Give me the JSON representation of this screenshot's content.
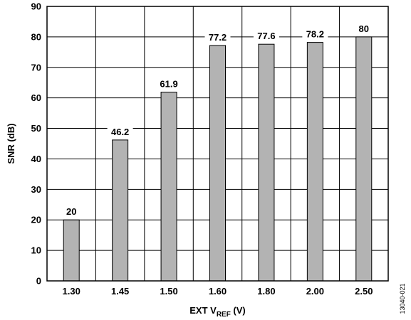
{
  "chart_data": {
    "type": "bar",
    "categories": [
      "1.30",
      "1.45",
      "1.50",
      "1.60",
      "1.80",
      "2.00",
      "2.50"
    ],
    "values": [
      20,
      46.2,
      61.9,
      77.2,
      77.6,
      78.2,
      80
    ],
    "data_labels": [
      "20",
      "46.2",
      "61.9",
      "77.2",
      "77.6",
      "78.2",
      "80"
    ],
    "xlabel": "EXT V",
    "xlabel_subscript": "REF",
    "xlabel_suffix": " (V)",
    "ylabel": "SNR (dB)",
    "ylim": [
      0,
      90
    ],
    "yticks": [
      0,
      10,
      20,
      30,
      40,
      50,
      60,
      70,
      80,
      90
    ],
    "grid": true,
    "bar_color": "#b3b3b3"
  },
  "figure_id": "13040-021"
}
